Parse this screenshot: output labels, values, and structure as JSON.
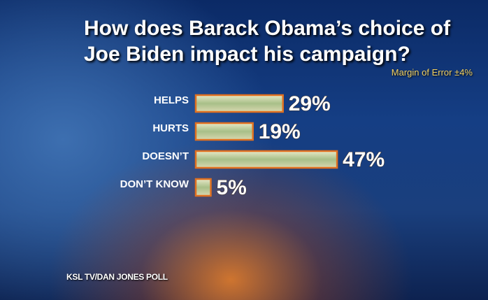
{
  "chart_data": {
    "type": "bar",
    "orientation": "horizontal",
    "title": "How does Barack Obama’s choice of Joe Biden impact his campaign?",
    "subtitle": "Margin of Error ±4%",
    "source": "KSL TV/DAN JONES POLL",
    "categories": [
      "HELPS",
      "HURTS",
      "DOESN’T",
      "DON’T KNOW"
    ],
    "values": [
      29,
      19,
      47,
      5
    ],
    "value_labels": [
      "29%",
      "19%",
      "47%",
      "5%"
    ],
    "color": "#e07020"
  }
}
